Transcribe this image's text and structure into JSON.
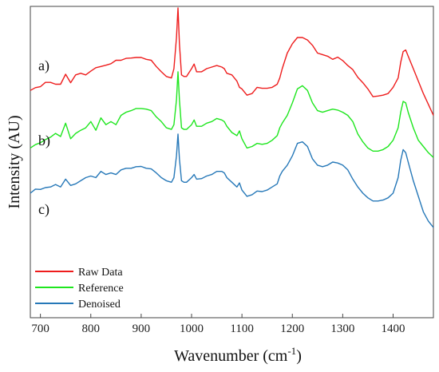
{
  "chart_data": {
    "type": "line",
    "xlabel": "Wavenumber (cm",
    "xlabel_sup": "-1",
    "xlabel_close": ")",
    "ylabel": "Intensity (AU)",
    "xlim": [
      680,
      1480
    ],
    "ylim": [
      0,
      1
    ],
    "grid": false,
    "legend_position": "bottom-left",
    "x_ticks": [
      700,
      800,
      900,
      1000,
      1100,
      1200,
      1300,
      1400
    ],
    "panel_labels": [
      "a)",
      "b)",
      "c)"
    ],
    "x": [
      680,
      690,
      700,
      710,
      720,
      730,
      740,
      750,
      760,
      770,
      780,
      790,
      800,
      810,
      820,
      830,
      840,
      850,
      860,
      870,
      880,
      890,
      900,
      910,
      920,
      930,
      940,
      950,
      960,
      965,
      970,
      973,
      976,
      980,
      985,
      990,
      1000,
      1005,
      1010,
      1020,
      1030,
      1040,
      1050,
      1060,
      1065,
      1070,
      1080,
      1090,
      1095,
      1100,
      1110,
      1120,
      1130,
      1140,
      1150,
      1160,
      1170,
      1175,
      1180,
      1190,
      1200,
      1210,
      1220,
      1230,
      1240,
      1250,
      1260,
      1270,
      1280,
      1290,
      1300,
      1310,
      1320,
      1330,
      1340,
      1350,
      1360,
      1370,
      1380,
      1390,
      1400,
      1410,
      1415,
      1420,
      1425,
      1430,
      1440,
      1450,
      1460,
      1470,
      1480
    ],
    "series": [
      {
        "name": "Raw Data",
        "color": "#ee1c1c",
        "values": [
          0.73,
          0.739,
          0.742,
          0.756,
          0.756,
          0.75,
          0.75,
          0.782,
          0.755,
          0.78,
          0.785,
          0.78,
          0.792,
          0.803,
          0.807,
          0.811,
          0.816,
          0.827,
          0.827,
          0.833,
          0.834,
          0.836,
          0.836,
          0.83,
          0.827,
          0.807,
          0.79,
          0.775,
          0.77,
          0.8,
          0.9,
          0.995,
          0.88,
          0.78,
          0.775,
          0.775,
          0.8,
          0.815,
          0.79,
          0.79,
          0.8,
          0.805,
          0.81,
          0.805,
          0.8,
          0.785,
          0.78,
          0.76,
          0.74,
          0.735,
          0.715,
          0.72,
          0.74,
          0.737,
          0.737,
          0.74,
          0.75,
          0.77,
          0.8,
          0.85,
          0.88,
          0.9,
          0.9,
          0.892,
          0.875,
          0.85,
          0.845,
          0.84,
          0.83,
          0.837,
          0.826,
          0.81,
          0.797,
          0.772,
          0.755,
          0.735,
          0.71,
          0.712,
          0.715,
          0.72,
          0.74,
          0.77,
          0.82,
          0.855,
          0.86,
          0.84,
          0.8,
          0.76,
          0.72,
          0.685,
          0.65
        ]
      },
      {
        "name": "Reference",
        "color": "#1ee61e",
        "values": [
          0.545,
          0.556,
          0.562,
          0.572,
          0.58,
          0.592,
          0.582,
          0.625,
          0.575,
          0.592,
          0.602,
          0.61,
          0.63,
          0.602,
          0.642,
          0.62,
          0.63,
          0.62,
          0.65,
          0.66,
          0.665,
          0.672,
          0.672,
          0.67,
          0.665,
          0.645,
          0.63,
          0.61,
          0.605,
          0.62,
          0.7,
          0.79,
          0.7,
          0.61,
          0.605,
          0.605,
          0.62,
          0.635,
          0.615,
          0.615,
          0.625,
          0.63,
          0.64,
          0.635,
          0.63,
          0.615,
          0.595,
          0.585,
          0.6,
          0.575,
          0.545,
          0.55,
          0.56,
          0.557,
          0.56,
          0.57,
          0.585,
          0.61,
          0.625,
          0.65,
          0.69,
          0.735,
          0.745,
          0.73,
          0.69,
          0.665,
          0.66,
          0.665,
          0.67,
          0.667,
          0.66,
          0.65,
          0.63,
          0.59,
          0.565,
          0.545,
          0.535,
          0.535,
          0.54,
          0.55,
          0.57,
          0.61,
          0.66,
          0.695,
          0.69,
          0.66,
          0.61,
          0.57,
          0.55,
          0.53,
          0.515
        ]
      },
      {
        "name": "Denoised",
        "color": "#2678b8",
        "values": [
          0.4,
          0.413,
          0.412,
          0.418,
          0.42,
          0.428,
          0.42,
          0.445,
          0.425,
          0.43,
          0.44,
          0.45,
          0.455,
          0.45,
          0.47,
          0.46,
          0.465,
          0.46,
          0.475,
          0.48,
          0.48,
          0.485,
          0.486,
          0.48,
          0.478,
          0.465,
          0.45,
          0.44,
          0.435,
          0.45,
          0.52,
          0.59,
          0.51,
          0.44,
          0.435,
          0.435,
          0.45,
          0.46,
          0.445,
          0.447,
          0.455,
          0.46,
          0.47,
          0.47,
          0.465,
          0.45,
          0.435,
          0.42,
          0.433,
          0.41,
          0.39,
          0.395,
          0.407,
          0.405,
          0.41,
          0.42,
          0.43,
          0.455,
          0.47,
          0.49,
          0.52,
          0.56,
          0.565,
          0.55,
          0.51,
          0.49,
          0.485,
          0.49,
          0.5,
          0.497,
          0.49,
          0.475,
          0.445,
          0.42,
          0.4,
          0.385,
          0.375,
          0.375,
          0.378,
          0.385,
          0.4,
          0.45,
          0.505,
          0.54,
          0.53,
          0.5,
          0.44,
          0.39,
          0.34,
          0.31,
          0.29
        ]
      }
    ]
  }
}
